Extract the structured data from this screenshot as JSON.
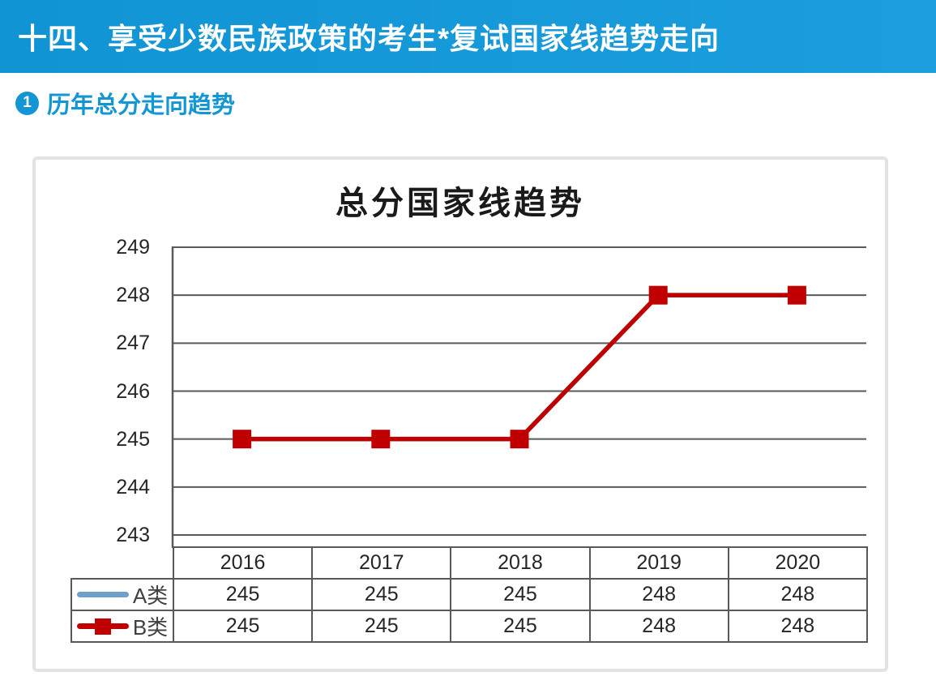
{
  "banner": {
    "title": "十四、享受少数民族政策的考生*复试国家线趋势走向"
  },
  "section": {
    "number": "1",
    "title": "历年总分走向趋势"
  },
  "chart_data": {
    "type": "line",
    "title": "总分国家线趋势",
    "categories": [
      "2016",
      "2017",
      "2018",
      "2019",
      "2020"
    ],
    "series": [
      {
        "name": "A类",
        "values": [
          245,
          245,
          245,
          248,
          248
        ],
        "color": "#6FA0CC",
        "marker": "none"
      },
      {
        "name": "B类",
        "values": [
          245,
          245,
          245,
          248,
          248
        ],
        "color": "#C00000",
        "marker": "square"
      }
    ],
    "ylim": [
      243,
      249
    ],
    "yticks": [
      249,
      248,
      247,
      246,
      245,
      244,
      243
    ],
    "grid": "horizontal",
    "grid_color": "#595959",
    "legend_position": "data-table-left",
    "data_table": true,
    "xlabel": "",
    "ylabel": ""
  },
  "colors": {
    "banner_bg": "#1094d4",
    "banner_bg_light": "#1c9edd",
    "banner_text": "#ffffff",
    "accent": "#1496d4",
    "grid": "#595959",
    "card_border": "#e3e3e3",
    "series_a": "#6FA0CC",
    "series_b": "#C00000"
  }
}
